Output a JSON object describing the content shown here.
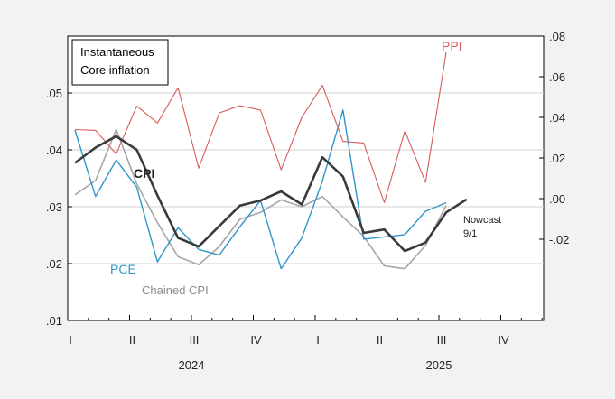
{
  "chart_data": {
    "type": "line",
    "legend_box": [
      "Instantaneous",
      "Core inflation"
    ],
    "left_axis": {
      "ylim": [
        0.01,
        0.06
      ],
      "ticks": [
        0.01,
        0.02,
        0.03,
        0.04,
        0.05
      ],
      "tick_labels": [
        ".01",
        ".02",
        ".03",
        ".04",
        ".05"
      ]
    },
    "right_axis": {
      "ylim": [
        -0.06,
        0.08
      ],
      "ticks": [
        -0.02,
        0.0,
        0.02,
        0.04,
        0.06,
        0.08
      ],
      "tick_labels": [
        "-.02",
        ".00",
        ".02",
        ".04",
        ".06",
        ".08"
      ]
    },
    "x_axis": {
      "quarter_labels": [
        "I",
        "II",
        "III",
        "IV",
        "I",
        "II",
        "III",
        "IV"
      ],
      "year_labels": [
        "2024",
        "2025"
      ],
      "x": [
        "2024-01",
        "2024-02",
        "2024-03",
        "2024-04",
        "2024-05",
        "2024-06",
        "2024-07",
        "2024-08",
        "2024-09",
        "2024-10",
        "2024-11",
        "2024-12",
        "2025-01",
        "2025-02",
        "2025-03",
        "2025-04",
        "2025-05",
        "2025-06",
        "2025-07",
        "2025-08"
      ]
    },
    "series": [
      {
        "name": "CPI",
        "axis": "left",
        "color": "#3a3a3a",
        "values": [
          0.0377,
          0.0404,
          0.0424,
          0.04,
          0.032,
          0.0245,
          0.023,
          0.0266,
          0.0302,
          0.0311,
          0.0327,
          0.0304,
          0.0387,
          0.0353,
          0.0254,
          0.026,
          0.0222,
          0.0237,
          0.029,
          0.0313
        ]
      },
      {
        "name": "PCE",
        "axis": "left",
        "color": "#2f96c9",
        "values": [
          0.0435,
          0.0318,
          0.0382,
          0.0334,
          0.0203,
          0.0263,
          0.0225,
          0.0215,
          0.0265,
          0.0311,
          0.0191,
          0.0245,
          0.0345,
          0.047,
          0.0243,
          0.0247,
          0.0251,
          0.0292,
          0.0307,
          null
        ]
      },
      {
        "name": "Chained CPI",
        "axis": "left",
        "color": "#a6a6a6",
        "values": [
          0.0321,
          0.0346,
          0.0436,
          0.034,
          0.0272,
          0.0212,
          0.0198,
          0.023,
          0.0278,
          0.029,
          0.0312,
          0.03,
          0.0318,
          0.0282,
          0.0248,
          0.0196,
          0.0191,
          0.0232,
          0.0302,
          null
        ]
      },
      {
        "name": "PPI",
        "axis": "right",
        "color": "#d95b5b",
        "values": [
          0.034,
          0.0336,
          0.022,
          0.0456,
          0.0372,
          0.0546,
          0.015,
          0.0422,
          0.0458,
          0.0436,
          0.0142,
          0.04,
          0.0558,
          0.0282,
          0.0274,
          -0.002,
          0.0334,
          0.008,
          0.072,
          null
        ]
      }
    ],
    "annotations": [
      {
        "text": "Nowcast",
        "color": "#222222"
      },
      {
        "text": "9/1",
        "color": "#222222"
      }
    ]
  }
}
